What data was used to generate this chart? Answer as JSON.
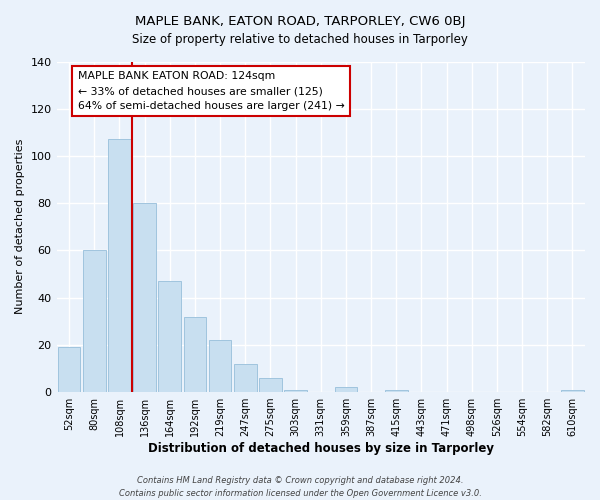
{
  "title": "MAPLE BANK, EATON ROAD, TARPORLEY, CW6 0BJ",
  "subtitle": "Size of property relative to detached houses in Tarporley",
  "xlabel": "Distribution of detached houses by size in Tarporley",
  "ylabel": "Number of detached properties",
  "bar_labels": [
    "52sqm",
    "80sqm",
    "108sqm",
    "136sqm",
    "164sqm",
    "192sqm",
    "219sqm",
    "247sqm",
    "275sqm",
    "303sqm",
    "331sqm",
    "359sqm",
    "387sqm",
    "415sqm",
    "443sqm",
    "471sqm",
    "498sqm",
    "526sqm",
    "554sqm",
    "582sqm",
    "610sqm"
  ],
  "bar_values": [
    19,
    60,
    107,
    80,
    47,
    32,
    22,
    12,
    6,
    1,
    0,
    2,
    0,
    1,
    0,
    0,
    0,
    0,
    0,
    0,
    1
  ],
  "bar_color": "#c8dff0",
  "bar_edge_color": "#a0c4de",
  "annotation_title": "MAPLE BANK EATON ROAD: 124sqm",
  "annotation_line1": "← 33% of detached houses are smaller (125)",
  "annotation_line2": "64% of semi-detached houses are larger (241) →",
  "annotation_box_facecolor": "#ffffff",
  "annotation_box_edgecolor": "#cc0000",
  "line_color": "#cc0000",
  "ylim": [
    0,
    140
  ],
  "yticks": [
    0,
    20,
    40,
    60,
    80,
    100,
    120,
    140
  ],
  "footer_line1": "Contains HM Land Registry data © Crown copyright and database right 2024.",
  "footer_line2": "Contains public sector information licensed under the Open Government Licence v3.0.",
  "bg_color": "#eaf2fb",
  "grid_color": "#ffffff"
}
